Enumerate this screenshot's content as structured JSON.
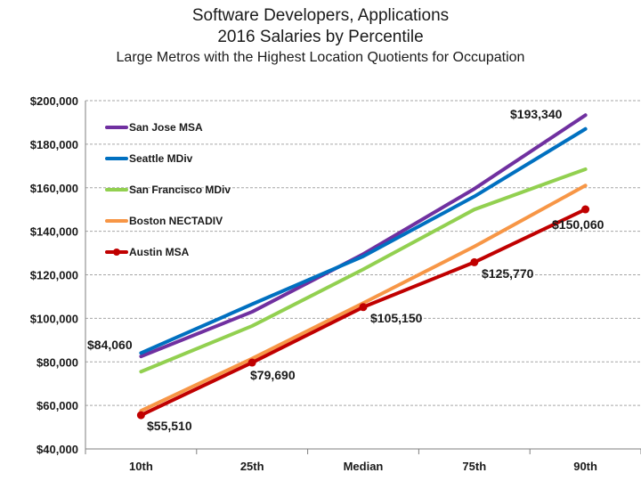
{
  "chart_data": {
    "type": "line",
    "title": "Software Developers, Applications",
    "subtitle": "2016 Salaries by Percentile",
    "subtitle2": "Large Metros with the Highest Location Quotients for Occupation",
    "categories": [
      "10th",
      "25th",
      "Median",
      "75th",
      "90th"
    ],
    "y_ticks": [
      "$40,000",
      "$60,000",
      "$80,000",
      "$100,000",
      "$120,000",
      "$140,000",
      "$160,000",
      "$180,000",
      "$200,000"
    ],
    "ylim": [
      40000,
      200000
    ],
    "grid": true,
    "legend_position": "top-left",
    "series": [
      {
        "name": "San Jose MSA",
        "color": "#7030A0",
        "values": [
          82500,
          103000,
          129500,
          159500,
          193340
        ],
        "markers": false
      },
      {
        "name": "Seattle MDiv",
        "color": "#0070C0",
        "values": [
          84060,
          106500,
          128500,
          156000,
          187000
        ],
        "markers": false
      },
      {
        "name": "San Francisco MDiv",
        "color": "#92D050",
        "values": [
          75500,
          96500,
          122500,
          150000,
          168500
        ],
        "markers": false
      },
      {
        "name": "Boston NECTADIV",
        "color": "#F79646",
        "values": [
          57500,
          81500,
          107000,
          133000,
          161000
        ],
        "markers": false
      },
      {
        "name": "Austin MSA",
        "color": "#C00000",
        "values": [
          55510,
          79690,
          105150,
          125770,
          150060
        ],
        "markers": true
      }
    ],
    "data_labels": [
      "$193,340",
      "$84,060",
      "$150,060",
      "$125,770",
      "$105,150",
      "$79,690",
      "$55,510"
    ]
  }
}
